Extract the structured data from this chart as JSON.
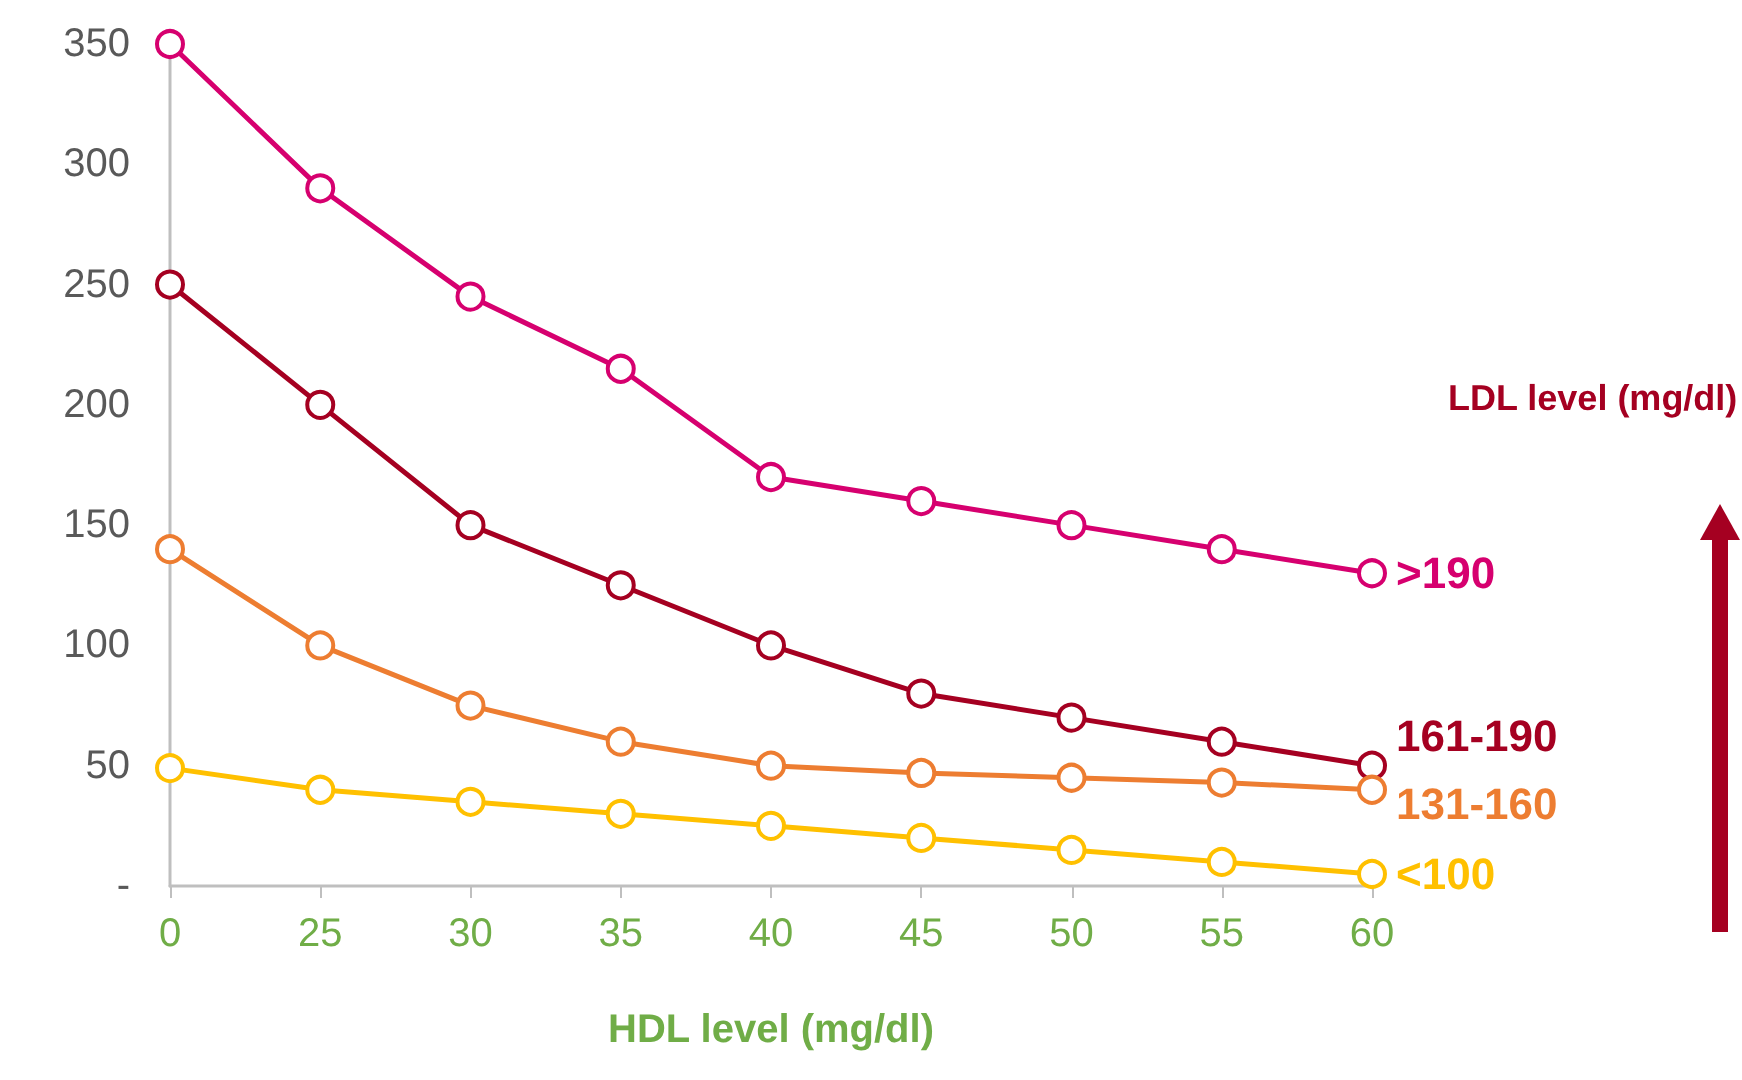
{
  "chart_data": {
    "type": "line",
    "xlabel": "HDL level (mg/dl)",
    "legend_title": "LDL level (mg/dl)",
    "categories": [
      "0",
      "25",
      "30",
      "35",
      "40",
      "45",
      "50",
      "55",
      "60"
    ],
    "series": [
      {
        "name": ">190",
        "color": "#d6006f",
        "values": [
          350,
          290,
          245,
          215,
          170,
          160,
          150,
          140,
          130
        ]
      },
      {
        "name": "161-190",
        "color": "#a50021",
        "values": [
          250,
          200,
          150,
          125,
          100,
          80,
          70,
          60,
          50
        ]
      },
      {
        "name": "131-160",
        "color": "#ed7d31",
        "values": [
          140,
          100,
          75,
          60,
          50,
          47,
          45,
          43,
          40
        ]
      },
      {
        "name": "<100",
        "color": "#ffc000",
        "values": [
          49,
          40,
          35,
          30,
          25,
          20,
          15,
          10,
          5
        ]
      }
    ],
    "ylim": [
      0,
      350
    ],
    "yticks": [
      {
        "value": 0,
        "label": "-"
      },
      50,
      100,
      150,
      200,
      250,
      300,
      350
    ],
    "grid": false,
    "legend": false,
    "marker": "circle",
    "line_style": "solid"
  }
}
